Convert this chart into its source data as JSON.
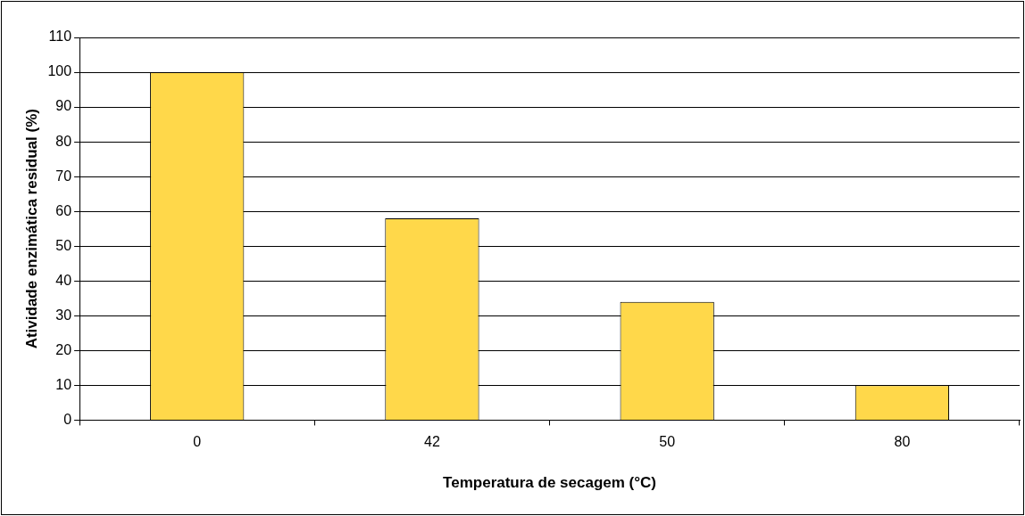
{
  "chart_data": {
    "type": "bar",
    "xlabel": "Temperatura de secagem (°C)",
    "ylabel": "Atividade enzimática residual (%)",
    "categories": [
      "0",
      "42",
      "50",
      "80"
    ],
    "values": [
      100,
      58,
      34,
      10
    ],
    "color": "#ffd84a",
    "ylim": [
      0,
      110
    ],
    "yticks": [
      0,
      10,
      20,
      30,
      40,
      50,
      60,
      70,
      80,
      90,
      100,
      110
    ],
    "grid": "y",
    "legend": false
  }
}
